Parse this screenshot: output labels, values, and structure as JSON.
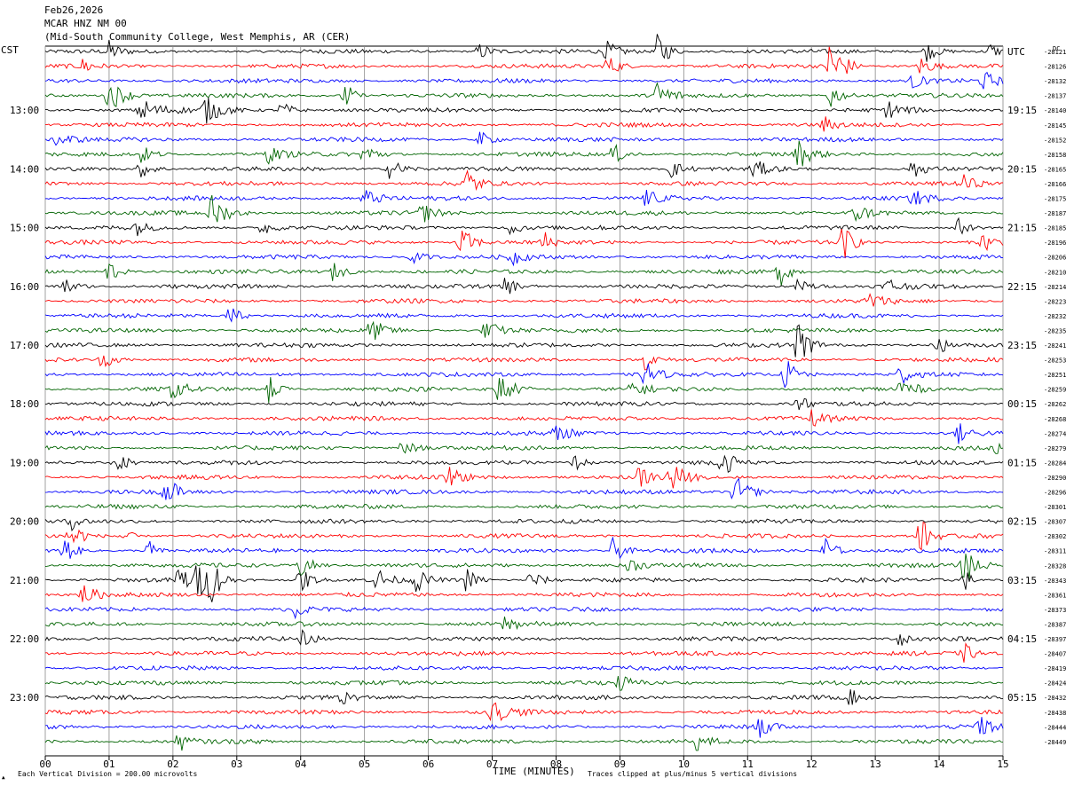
{
  "header": {
    "date": "Feb26,2026",
    "station": "MCAR HNZ NM 00",
    "location": "(Mid-South Community College, West Memphis, AR (CER)"
  },
  "left_axis_label": "CST",
  "right_axis_label": "UTC",
  "dc_label": "DC",
  "footer": {
    "scale": "Each Vertical Division =  200.00 microvolts",
    "clip": "Traces clipped at plus/minus 5 vertical divisions",
    "mark": "▲"
  },
  "chart_data": {
    "type": "line",
    "title": "MCAR HNZ NM 00",
    "xlabel": "TIME (MINUTES)",
    "x_ticks": [
      "00",
      "01",
      "02",
      "03",
      "04",
      "05",
      "06",
      "07",
      "08",
      "09",
      "10",
      "11",
      "12",
      "13",
      "14",
      "15"
    ],
    "xlim": [
      0,
      15
    ],
    "left_time_labels": [
      {
        "trace": 4,
        "label": "13:00"
      },
      {
        "trace": 8,
        "label": "14:00"
      },
      {
        "trace": 12,
        "label": "15:00"
      },
      {
        "trace": 16,
        "label": "16:00"
      },
      {
        "trace": 20,
        "label": "17:00"
      },
      {
        "trace": 24,
        "label": "18:00"
      },
      {
        "trace": 28,
        "label": "19:00"
      },
      {
        "trace": 32,
        "label": "20:00"
      },
      {
        "trace": 36,
        "label": "21:00"
      },
      {
        "trace": 40,
        "label": "22:00"
      },
      {
        "trace": 44,
        "label": "23:00"
      }
    ],
    "right_time_labels": [
      {
        "trace": 0,
        "label": "UTC"
      },
      {
        "trace": 4,
        "label": "19:15"
      },
      {
        "trace": 8,
        "label": "20:15"
      },
      {
        "trace": 12,
        "label": "21:15"
      },
      {
        "trace": 16,
        "label": "22:15"
      },
      {
        "trace": 20,
        "label": "23:15"
      },
      {
        "trace": 24,
        "label": "00:15"
      },
      {
        "trace": 28,
        "label": "01:15"
      },
      {
        "trace": 32,
        "label": "02:15"
      },
      {
        "trace": 36,
        "label": "03:15"
      },
      {
        "trace": 40,
        "label": "04:15"
      },
      {
        "trace": 44,
        "label": "05:15"
      }
    ],
    "dc_offsets": [
      "-28121",
      "-28126",
      "-28132",
      "-28137",
      "-28140",
      "-28145",
      "-28152",
      "-28158",
      "-28165",
      "-28166",
      "-28175",
      "-28187",
      "-28185",
      "-28196",
      "-28206",
      "-28210",
      "-28214",
      "-28223",
      "-28232",
      "-28235",
      "-28241",
      "-28253",
      "-28251",
      "-28259",
      "-28262",
      "-28268",
      "-28274",
      "-28279",
      "-28284",
      "-28290",
      "-28296",
      "-28301",
      "-28307",
      "-28302",
      "-28311",
      "-28328",
      "-28343",
      "-28361",
      "-28373",
      "-28387",
      "-28397",
      "-28407",
      "-28419",
      "-28424",
      "-28432",
      "-28438",
      "-28444",
      "-28449"
    ],
    "trace_colors": [
      "#000000",
      "#ff0000",
      "#0000ff",
      "#006400"
    ],
    "grid": "vertical minute lines",
    "events": [
      {
        "trace": 0,
        "t": 1.0,
        "amp": 1.4,
        "dur": 0.4
      },
      {
        "trace": 0,
        "t": 6.8,
        "amp": 1.2,
        "dur": 0.5
      },
      {
        "trace": 0,
        "t": 8.8,
        "amp": 1.3,
        "dur": 0.5
      },
      {
        "trace": 0,
        "t": 9.6,
        "amp": 3.0,
        "dur": 0.4
      },
      {
        "trace": 0,
        "t": 13.8,
        "amp": 1.4,
        "dur": 0.5
      },
      {
        "trace": 0,
        "t": 14.8,
        "amp": 1.2,
        "dur": 0.3
      },
      {
        "trace": 1,
        "t": 0.6,
        "amp": 1.2,
        "dur": 0.4
      },
      {
        "trace": 1,
        "t": 8.8,
        "amp": 1.6,
        "dur": 0.5
      },
      {
        "trace": 1,
        "t": 12.3,
        "amp": 5.0,
        "dur": 0.5
      },
      {
        "trace": 1,
        "t": 13.7,
        "amp": 1.5,
        "dur": 0.5
      },
      {
        "trace": 2,
        "t": 13.6,
        "amp": 1.2,
        "dur": 0.4
      },
      {
        "trace": 2,
        "t": 14.7,
        "amp": 1.3,
        "dur": 0.5
      },
      {
        "trace": 3,
        "t": 1.0,
        "amp": 2.5,
        "dur": 0.6
      },
      {
        "trace": 3,
        "t": 4.7,
        "amp": 2.5,
        "dur": 0.3
      },
      {
        "trace": 3,
        "t": 9.6,
        "amp": 2.5,
        "dur": 0.5
      },
      {
        "trace": 3,
        "t": 12.3,
        "amp": 2.0,
        "dur": 0.4
      },
      {
        "trace": 4,
        "t": 1.5,
        "amp": 1.6,
        "dur": 0.8
      },
      {
        "trace": 4,
        "t": 2.5,
        "amp": 2.0,
        "dur": 0.6
      },
      {
        "trace": 4,
        "t": 3.7,
        "amp": 1.2,
        "dur": 0.5
      },
      {
        "trace": 4,
        "t": 13.2,
        "amp": 1.3,
        "dur": 0.5
      },
      {
        "trace": 5,
        "t": 12.2,
        "amp": 1.2,
        "dur": 0.4
      },
      {
        "trace": 6,
        "t": 0.2,
        "amp": 1.2,
        "dur": 0.5
      },
      {
        "trace": 6,
        "t": 6.8,
        "amp": 1.2,
        "dur": 0.5
      },
      {
        "trace": 7,
        "t": 1.5,
        "amp": 1.3,
        "dur": 0.5
      },
      {
        "trace": 7,
        "t": 3.5,
        "amp": 1.2,
        "dur": 0.5
      },
      {
        "trace": 7,
        "t": 5.0,
        "amp": 1.6,
        "dur": 0.5
      },
      {
        "trace": 7,
        "t": 8.9,
        "amp": 1.4,
        "dur": 0.5
      },
      {
        "trace": 7,
        "t": 11.8,
        "amp": 2.0,
        "dur": 0.5
      },
      {
        "trace": 8,
        "t": 1.5,
        "amp": 1.3,
        "dur": 0.5
      },
      {
        "trace": 8,
        "t": 5.4,
        "amp": 1.5,
        "dur": 0.6
      },
      {
        "trace": 8,
        "t": 9.8,
        "amp": 1.3,
        "dur": 0.5
      },
      {
        "trace": 8,
        "t": 11.1,
        "amp": 1.3,
        "dur": 0.5
      },
      {
        "trace": 8,
        "t": 13.6,
        "amp": 1.5,
        "dur": 0.4
      },
      {
        "trace": 9,
        "t": 6.6,
        "amp": 2.5,
        "dur": 0.4
      },
      {
        "trace": 9,
        "t": 14.4,
        "amp": 1.2,
        "dur": 0.4
      },
      {
        "trace": 10,
        "t": 5.0,
        "amp": 1.3,
        "dur": 0.6
      },
      {
        "trace": 10,
        "t": 9.4,
        "amp": 1.2,
        "dur": 0.5
      },
      {
        "trace": 10,
        "t": 13.6,
        "amp": 1.2,
        "dur": 0.5
      },
      {
        "trace": 11,
        "t": 2.6,
        "amp": 2.6,
        "dur": 0.6
      },
      {
        "trace": 11,
        "t": 5.9,
        "amp": 1.4,
        "dur": 0.5
      },
      {
        "trace": 11,
        "t": 12.7,
        "amp": 1.3,
        "dur": 0.5
      },
      {
        "trace": 12,
        "t": 1.4,
        "amp": 1.2,
        "dur": 0.4
      },
      {
        "trace": 12,
        "t": 3.4,
        "amp": 1.2,
        "dur": 0.5
      },
      {
        "trace": 12,
        "t": 7.3,
        "amp": 1.2,
        "dur": 0.4
      },
      {
        "trace": 12,
        "t": 14.3,
        "amp": 1.3,
        "dur": 0.4
      },
      {
        "trace": 13,
        "t": 6.5,
        "amp": 2.5,
        "dur": 0.5
      },
      {
        "trace": 13,
        "t": 7.8,
        "amp": 1.8,
        "dur": 0.3
      },
      {
        "trace": 13,
        "t": 12.5,
        "amp": 2.6,
        "dur": 0.4
      },
      {
        "trace": 13,
        "t": 14.7,
        "amp": 1.5,
        "dur": 0.4
      },
      {
        "trace": 14,
        "t": 5.7,
        "amp": 1.3,
        "dur": 0.5
      },
      {
        "trace": 14,
        "t": 7.3,
        "amp": 1.3,
        "dur": 0.4
      },
      {
        "trace": 15,
        "t": 1.0,
        "amp": 1.8,
        "dur": 0.4
      },
      {
        "trace": 15,
        "t": 4.5,
        "amp": 1.3,
        "dur": 0.5
      },
      {
        "trace": 15,
        "t": 11.5,
        "amp": 2.2,
        "dur": 0.4
      },
      {
        "trace": 16,
        "t": 0.3,
        "amp": 1.3,
        "dur": 0.5
      },
      {
        "trace": 16,
        "t": 7.2,
        "amp": 1.4,
        "dur": 0.5
      },
      {
        "trace": 16,
        "t": 11.8,
        "amp": 1.3,
        "dur": 0.5
      },
      {
        "trace": 16,
        "t": 13.2,
        "amp": 1.2,
        "dur": 0.5
      },
      {
        "trace": 17,
        "t": 12.9,
        "amp": 1.3,
        "dur": 0.5
      },
      {
        "trace": 18,
        "t": 2.9,
        "amp": 1.6,
        "dur": 0.4
      },
      {
        "trace": 19,
        "t": 5.1,
        "amp": 1.6,
        "dur": 0.6
      },
      {
        "trace": 19,
        "t": 6.9,
        "amp": 1.5,
        "dur": 0.6
      },
      {
        "trace": 20,
        "t": 11.8,
        "amp": 4.0,
        "dur": 0.4
      },
      {
        "trace": 20,
        "t": 14.0,
        "amp": 1.4,
        "dur": 0.3
      },
      {
        "trace": 21,
        "t": 0.9,
        "amp": 1.3,
        "dur": 0.5
      },
      {
        "trace": 21,
        "t": 9.4,
        "amp": 1.5,
        "dur": 0.4
      },
      {
        "trace": 22,
        "t": 9.4,
        "amp": 2.2,
        "dur": 0.4
      },
      {
        "trace": 22,
        "t": 11.6,
        "amp": 2.4,
        "dur": 0.5
      },
      {
        "trace": 22,
        "t": 13.4,
        "amp": 1.5,
        "dur": 0.4
      },
      {
        "trace": 23,
        "t": 2.0,
        "amp": 1.5,
        "dur": 0.5
      },
      {
        "trace": 23,
        "t": 3.5,
        "amp": 2.0,
        "dur": 0.4
      },
      {
        "trace": 23,
        "t": 7.1,
        "amp": 2.5,
        "dur": 0.6
      },
      {
        "trace": 23,
        "t": 9.2,
        "amp": 1.2,
        "dur": 0.5
      },
      {
        "trace": 23,
        "t": 13.4,
        "amp": 2.5,
        "dur": 0.4
      },
      {
        "trace": 24,
        "t": 11.8,
        "amp": 1.2,
        "dur": 0.4
      },
      {
        "trace": 25,
        "t": 12.0,
        "amp": 1.2,
        "dur": 0.5
      },
      {
        "trace": 26,
        "t": 8.0,
        "amp": 1.3,
        "dur": 0.5
      },
      {
        "trace": 26,
        "t": 14.3,
        "amp": 1.5,
        "dur": 0.5
      },
      {
        "trace": 27,
        "t": 5.6,
        "amp": 1.2,
        "dur": 0.5
      },
      {
        "trace": 27,
        "t": 14.9,
        "amp": 1.2,
        "dur": 0.3
      },
      {
        "trace": 28,
        "t": 1.1,
        "amp": 2.5,
        "dur": 0.4
      },
      {
        "trace": 28,
        "t": 8.3,
        "amp": 1.2,
        "dur": 0.4
      },
      {
        "trace": 28,
        "t": 10.6,
        "amp": 2.0,
        "dur": 0.5
      },
      {
        "trace": 29,
        "t": 6.3,
        "amp": 1.8,
        "dur": 0.5
      },
      {
        "trace": 29,
        "t": 9.3,
        "amp": 1.5,
        "dur": 0.5
      },
      {
        "trace": 29,
        "t": 9.8,
        "amp": 2.4,
        "dur": 0.5
      },
      {
        "trace": 30,
        "t": 1.9,
        "amp": 2.5,
        "dur": 0.4
      },
      {
        "trace": 30,
        "t": 10.8,
        "amp": 2.4,
        "dur": 0.6
      },
      {
        "trace": 32,
        "t": 0.4,
        "amp": 1.2,
        "dur": 0.3
      },
      {
        "trace": 33,
        "t": 0.4,
        "amp": 2.4,
        "dur": 0.4
      },
      {
        "trace": 33,
        "t": 1.2,
        "amp": 1.6,
        "dur": 0.3
      },
      {
        "trace": 33,
        "t": 13.7,
        "amp": 3.0,
        "dur": 0.4
      },
      {
        "trace": 34,
        "t": 0.3,
        "amp": 2.0,
        "dur": 0.4
      },
      {
        "trace": 34,
        "t": 1.6,
        "amp": 2.0,
        "dur": 0.3
      },
      {
        "trace": 34,
        "t": 8.9,
        "amp": 2.0,
        "dur": 0.4
      },
      {
        "trace": 34,
        "t": 12.2,
        "amp": 2.5,
        "dur": 0.4
      },
      {
        "trace": 35,
        "t": 4.0,
        "amp": 1.8,
        "dur": 0.5
      },
      {
        "trace": 35,
        "t": 9.1,
        "amp": 1.6,
        "dur": 0.4
      },
      {
        "trace": 35,
        "t": 14.4,
        "amp": 2.8,
        "dur": 0.5
      },
      {
        "trace": 36,
        "t": 2.1,
        "amp": 2.5,
        "dur": 0.4
      },
      {
        "trace": 36,
        "t": 2.4,
        "amp": 3.0,
        "dur": 0.3
      },
      {
        "trace": 36,
        "t": 2.6,
        "amp": 3.5,
        "dur": 0.4
      },
      {
        "trace": 36,
        "t": 4.0,
        "amp": 2.0,
        "dur": 0.4
      },
      {
        "trace": 36,
        "t": 5.2,
        "amp": 1.8,
        "dur": 0.4
      },
      {
        "trace": 36,
        "t": 5.8,
        "amp": 1.8,
        "dur": 0.4
      },
      {
        "trace": 36,
        "t": 6.6,
        "amp": 1.8,
        "dur": 0.4
      },
      {
        "trace": 36,
        "t": 7.6,
        "amp": 1.4,
        "dur": 0.5
      },
      {
        "trace": 36,
        "t": 14.4,
        "amp": 1.6,
        "dur": 0.3
      },
      {
        "trace": 37,
        "t": 0.6,
        "amp": 1.5,
        "dur": 0.5
      },
      {
        "trace": 38,
        "t": 3.9,
        "amp": 1.3,
        "dur": 0.4
      },
      {
        "trace": 39,
        "t": 7.2,
        "amp": 1.2,
        "dur": 0.5
      },
      {
        "trace": 40,
        "t": 4.0,
        "amp": 1.2,
        "dur": 0.5
      },
      {
        "trace": 40,
        "t": 13.4,
        "amp": 1.4,
        "dur": 0.4
      },
      {
        "trace": 41,
        "t": 14.4,
        "amp": 1.3,
        "dur": 0.4
      },
      {
        "trace": 43,
        "t": 9.0,
        "amp": 1.2,
        "dur": 0.4
      },
      {
        "trace": 44,
        "t": 4.6,
        "amp": 1.3,
        "dur": 0.4
      },
      {
        "trace": 44,
        "t": 12.6,
        "amp": 1.2,
        "dur": 0.4
      },
      {
        "trace": 45,
        "t": 7.0,
        "amp": 1.6,
        "dur": 0.7
      },
      {
        "trace": 46,
        "t": 11.2,
        "amp": 1.6,
        "dur": 0.4
      },
      {
        "trace": 46,
        "t": 14.6,
        "amp": 1.6,
        "dur": 0.6
      },
      {
        "trace": 47,
        "t": 2.1,
        "amp": 1.4,
        "dur": 0.4
      },
      {
        "trace": 47,
        "t": 10.2,
        "amp": 1.2,
        "dur": 0.5
      }
    ]
  }
}
